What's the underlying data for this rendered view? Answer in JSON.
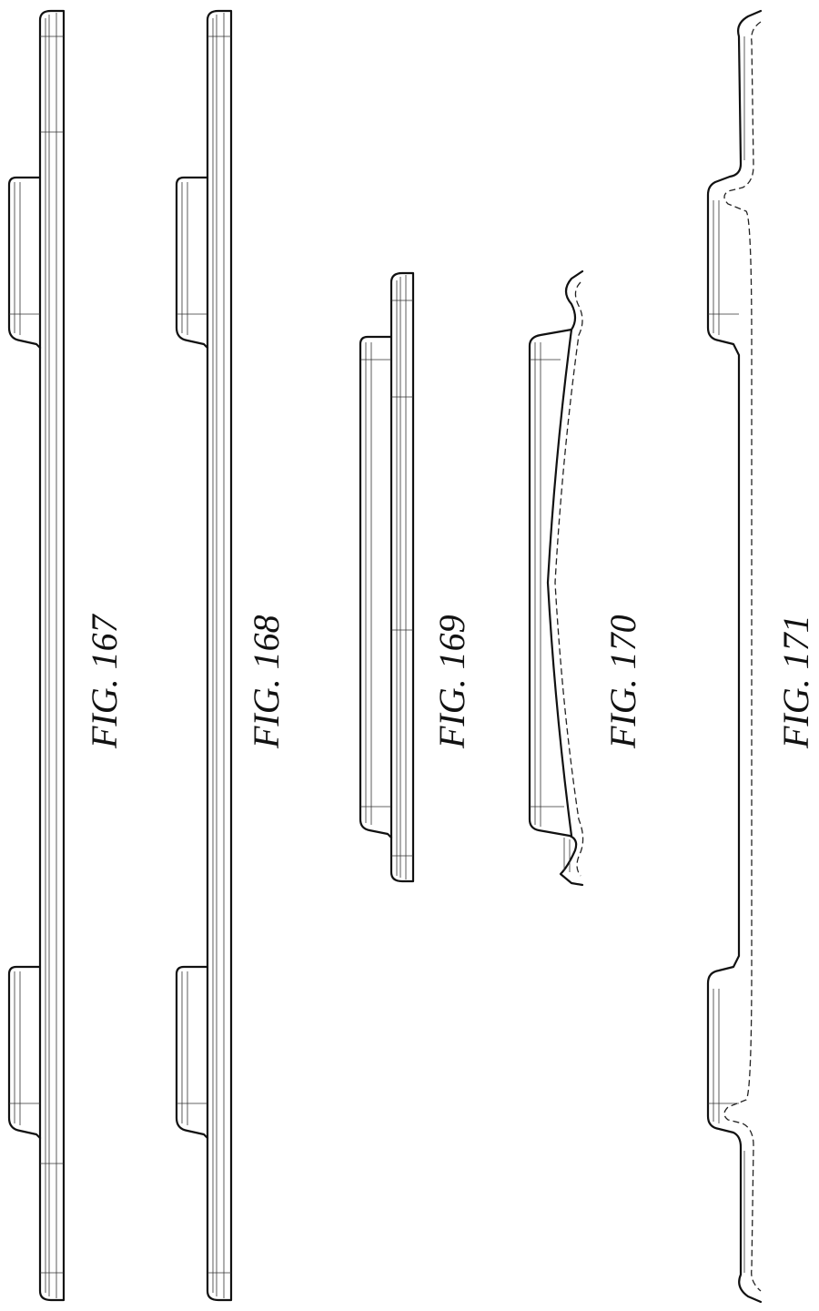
{
  "figures": [
    {
      "id": "fig-167",
      "label": "FIG. 167"
    },
    {
      "id": "fig-168",
      "label": "FIG. 168"
    },
    {
      "id": "fig-169",
      "label": "FIG. 169"
    },
    {
      "id": "fig-170",
      "label": "FIG. 170"
    },
    {
      "id": "fig-171",
      "label": "FIG. 171"
    }
  ]
}
